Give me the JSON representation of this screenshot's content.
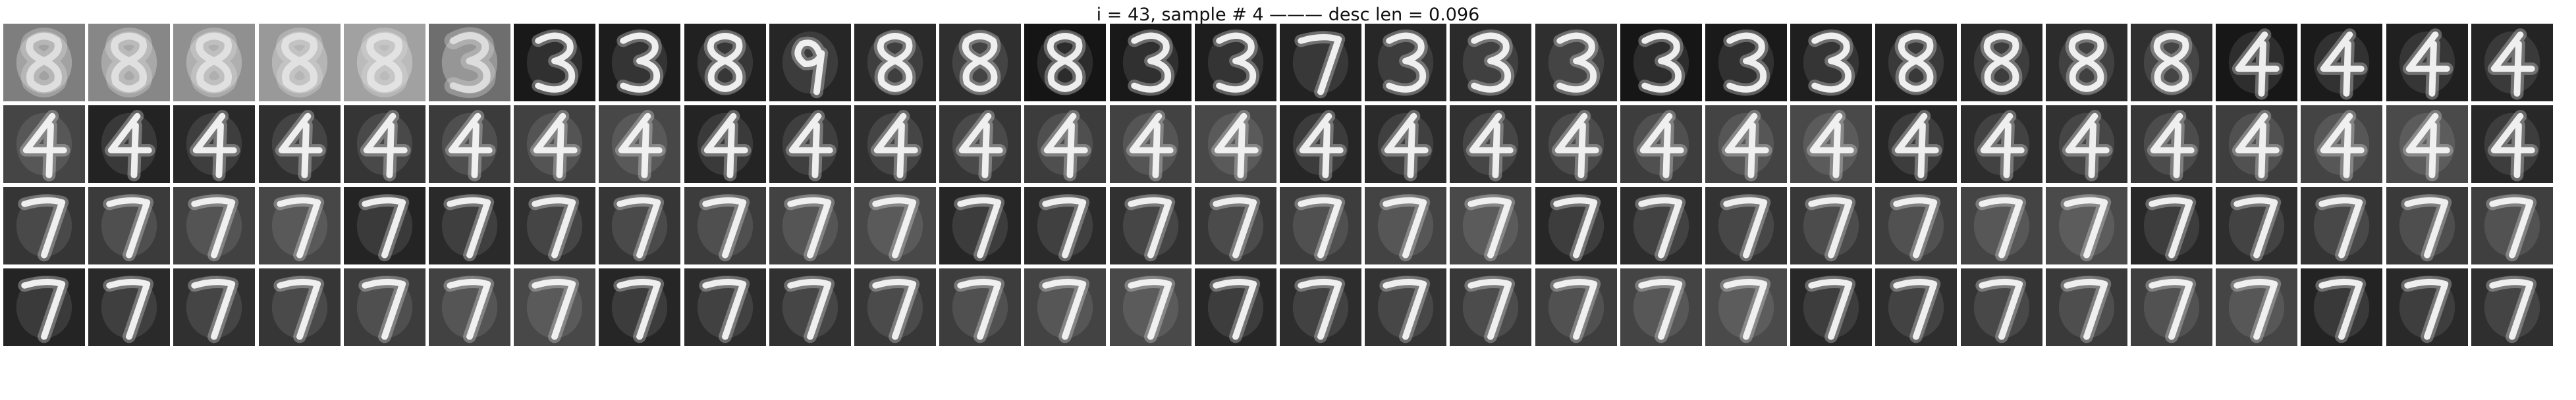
{
  "figure": {
    "title": "i = 43, sample # 4 ——— desc len = 0.096"
  },
  "grid": {
    "rows": 4,
    "cols": 30,
    "rows_data": [
      [
        "8",
        "8",
        "8",
        "8",
        "8",
        "3",
        "3",
        "3",
        "8",
        "9",
        "8",
        "8",
        "8",
        "3",
        "3",
        "7",
        "3",
        "3",
        "3",
        "3",
        "3",
        "3",
        "8",
        "8",
        "8",
        "8",
        "4",
        "4",
        "4",
        "4"
      ],
      [
        "4",
        "4",
        "4",
        "4",
        "4",
        "4",
        "4",
        "4",
        "4",
        "4",
        "4",
        "4",
        "4",
        "4",
        "4",
        "4",
        "4",
        "4",
        "4",
        "4",
        "4",
        "4",
        "4",
        "4",
        "4",
        "4",
        "4",
        "4",
        "4",
        "4"
      ],
      [
        "7",
        "7",
        "7",
        "7",
        "7",
        "7",
        "7",
        "7",
        "7",
        "7",
        "7",
        "7",
        "7",
        "7",
        "7",
        "7",
        "7",
        "7",
        "7",
        "7",
        "7",
        "7",
        "7",
        "7",
        "7",
        "7",
        "7",
        "7",
        "7",
        "7"
      ],
      [
        "7",
        "7",
        "7",
        "7",
        "7",
        "7",
        "7",
        "7",
        "7",
        "7",
        "7",
        "7",
        "7",
        "7",
        "7",
        "7",
        "7",
        "7",
        "7",
        "7",
        "7",
        "7",
        "7",
        "7",
        "7",
        "7",
        "7",
        "7",
        "7",
        "7"
      ]
    ]
  }
}
